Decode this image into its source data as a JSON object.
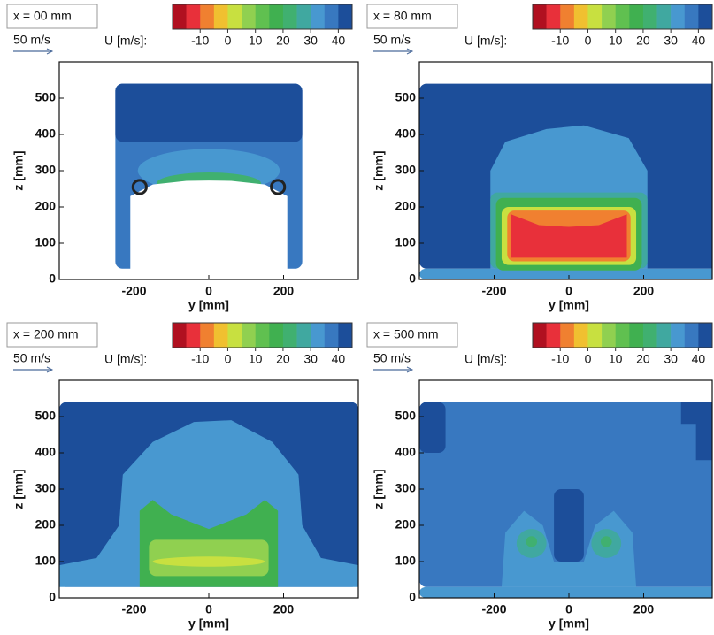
{
  "chart_data": [
    {
      "type": "contour",
      "title": "x = 00 mm",
      "reference_vector": "50 m/s",
      "colorbar": {
        "label": "U [m/s]:",
        "clim": [
          -20,
          45
        ],
        "ticks": [
          -10,
          0,
          10,
          20,
          30,
          40
        ],
        "colors": [
          "#b01020",
          "#e8303a",
          "#f08030",
          "#f0c030",
          "#c8e040",
          "#90d050",
          "#60c050",
          "#40b050",
          "#40b070",
          "#40a8a0",
          "#4898d0",
          "#3878c0",
          "#1c4e9a"
        ]
      },
      "xlabel": "y [mm]",
      "ylabel": "z [mm]",
      "xlim": [
        -400,
        400
      ],
      "ylim": [
        0,
        600
      ],
      "xticks": [
        -200,
        0,
        200
      ],
      "yticks": [
        0,
        100,
        200,
        300,
        400,
        500
      ]
    },
    {
      "type": "contour",
      "title": "x = 80 mm",
      "reference_vector": "50 m/s",
      "colorbar": {
        "label": "U [m/s]:",
        "clim": [
          -20,
          45
        ],
        "ticks": [
          -10,
          0,
          10,
          20,
          30,
          40
        ],
        "colors": [
          "#b01020",
          "#e8303a",
          "#f08030",
          "#f0c030",
          "#c8e040",
          "#90d050",
          "#60c050",
          "#40b050",
          "#40b070",
          "#40a8a0",
          "#4898d0",
          "#3878c0",
          "#1c4e9a"
        ]
      },
      "xlabel": "y [mm]",
      "ylabel": "z [mm]",
      "xlim": [
        -400,
        400
      ],
      "ylim": [
        0,
        600
      ],
      "xticks": [
        -200,
        0,
        200
      ],
      "yticks": [
        0,
        100,
        200,
        300,
        400,
        500
      ]
    },
    {
      "type": "contour",
      "title": "x = 200 mm",
      "reference_vector": "50 m/s",
      "colorbar": {
        "label": "U [m/s]:",
        "clim": [
          -20,
          45
        ],
        "ticks": [
          -10,
          0,
          10,
          20,
          30,
          40
        ],
        "colors": [
          "#b01020",
          "#e8303a",
          "#f08030",
          "#f0c030",
          "#c8e040",
          "#90d050",
          "#60c050",
          "#40b050",
          "#40b070",
          "#40a8a0",
          "#4898d0",
          "#3878c0",
          "#1c4e9a"
        ]
      },
      "xlabel": "y [mm]",
      "ylabel": "z [mm]",
      "xlim": [
        -400,
        400
      ],
      "ylim": [
        0,
        600
      ],
      "xticks": [
        -200,
        0,
        200
      ],
      "yticks": [
        0,
        100,
        200,
        300,
        400,
        500
      ]
    },
    {
      "type": "contour",
      "title": "x = 500 mm",
      "reference_vector": "50 m/s",
      "colorbar": {
        "label": "U [m/s]:",
        "clim": [
          -20,
          45
        ],
        "ticks": [
          -10,
          0,
          10,
          20,
          30,
          40
        ],
        "colors": [
          "#b01020",
          "#e8303a",
          "#f08030",
          "#f0c030",
          "#c8e040",
          "#90d050",
          "#60c050",
          "#40b050",
          "#40b070",
          "#40a8a0",
          "#4898d0",
          "#3878c0",
          "#1c4e9a"
        ]
      },
      "xlabel": "y [mm]",
      "ylabel": "z [mm]",
      "xlim": [
        -400,
        400
      ],
      "ylim": [
        0,
        600
      ],
      "xticks": [
        -200,
        0,
        200
      ],
      "yticks": [
        0,
        100,
        200,
        300,
        400,
        500
      ]
    }
  ]
}
